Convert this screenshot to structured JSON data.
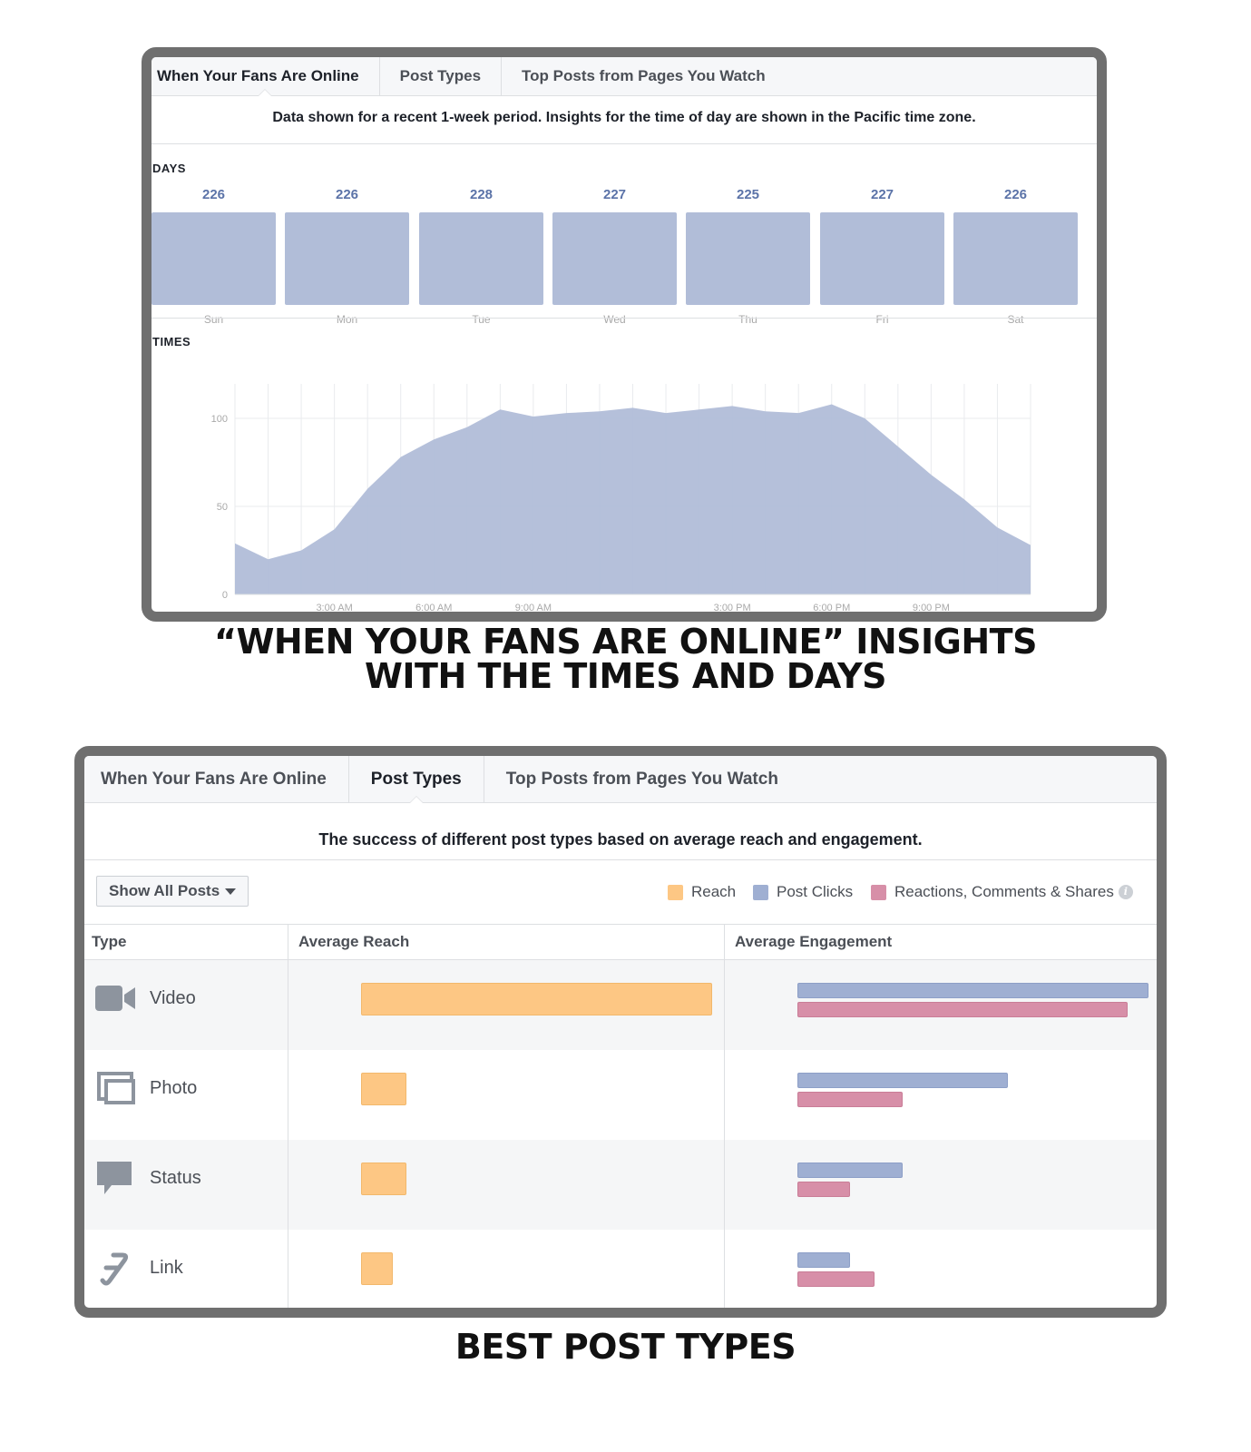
{
  "panel1": {
    "tabs": [
      {
        "label": "When Your Fans Are Online",
        "active": true
      },
      {
        "label": "Post Types",
        "active": false
      },
      {
        "label": "Top Posts from Pages You Watch",
        "active": false
      }
    ],
    "description": "Data shown for a recent 1-week period. Insights for the time of day are shown in the Pacific time zone.",
    "days_label": "DAYS",
    "times_label": "TIMES",
    "bar_color": "#b1bdd8",
    "value_color": "#5b73a8"
  },
  "caption1": {
    "line1": "“WHEN YOUR FANS ARE ONLINE” INSIGHTS",
    "line2": "WITH THE TIMES AND DAYS"
  },
  "panel2": {
    "tabs": [
      {
        "label": "When Your Fans Are Online",
        "active": false
      },
      {
        "label": "Post Types",
        "active": true
      },
      {
        "label": "Top Posts from Pages You Watch",
        "active": false
      }
    ],
    "description": "The success of different post types based on average reach and engagement.",
    "dropdown_label": "Show All Posts",
    "legend": [
      {
        "label": "Reach",
        "color": "#fdc784"
      },
      {
        "label": "Post Clicks",
        "color": "#9fafd2"
      },
      {
        "label": "Reactions, Comments & Shares",
        "color": "#d78fa8"
      }
    ],
    "columns": [
      "Type",
      "Average Reach",
      "Average Engagement"
    ],
    "rows": [
      {
        "label": "Video",
        "icon": "video-camera-icon",
        "reach": 1.0,
        "clicks": 1.0,
        "reactions": 0.94
      },
      {
        "label": "Photo",
        "icon": "photo-stack-icon",
        "reach": 0.13,
        "clicks": 0.6,
        "reactions": 0.3
      },
      {
        "label": "Status",
        "icon": "speech-bubble-icon",
        "reach": 0.13,
        "clicks": 0.3,
        "reactions": 0.15
      },
      {
        "label": "Link",
        "icon": "link-chain-icon",
        "reach": 0.09,
        "clicks": 0.15,
        "reactions": 0.22
      }
    ]
  },
  "caption2": {
    "line1": "BEST POST TYPES"
  },
  "chart_data": [
    {
      "type": "bar",
      "title": "DAYS",
      "categories": [
        "Sun",
        "Mon",
        "Tue",
        "Wed",
        "Thu",
        "Fri",
        "Sat"
      ],
      "values": [
        226,
        226,
        228,
        227,
        225,
        227,
        226
      ],
      "value_labels": [
        "226",
        "226",
        "228",
        "227",
        "225",
        "227",
        "226"
      ]
    },
    {
      "type": "area",
      "title": "TIMES",
      "xlabel": "",
      "ylabel": "",
      "x": [
        0,
        1,
        2,
        3,
        4,
        5,
        6,
        7,
        8,
        9,
        10,
        11,
        12,
        13,
        14,
        15,
        16,
        17,
        18,
        19,
        20,
        21,
        22,
        23,
        24
      ],
      "y": [
        29,
        20,
        25,
        37,
        60,
        78,
        88,
        95,
        105,
        101,
        103,
        104,
        106,
        103,
        105,
        107,
        104,
        103,
        108,
        100,
        84,
        68,
        54,
        38,
        28
      ],
      "ylim": [
        0,
        120
      ],
      "yticks": [
        0,
        50,
        100
      ],
      "xtick_labels": [
        {
          "x": 3,
          "label": "3:00 AM"
        },
        {
          "x": 6,
          "label": "6:00 AM"
        },
        {
          "x": 9,
          "label": "9:00 AM"
        },
        {
          "x": 15,
          "label": "3:00 PM"
        },
        {
          "x": 18,
          "label": "6:00 PM"
        },
        {
          "x": 21,
          "label": "9:00 PM"
        }
      ],
      "grid": true
    }
  ]
}
